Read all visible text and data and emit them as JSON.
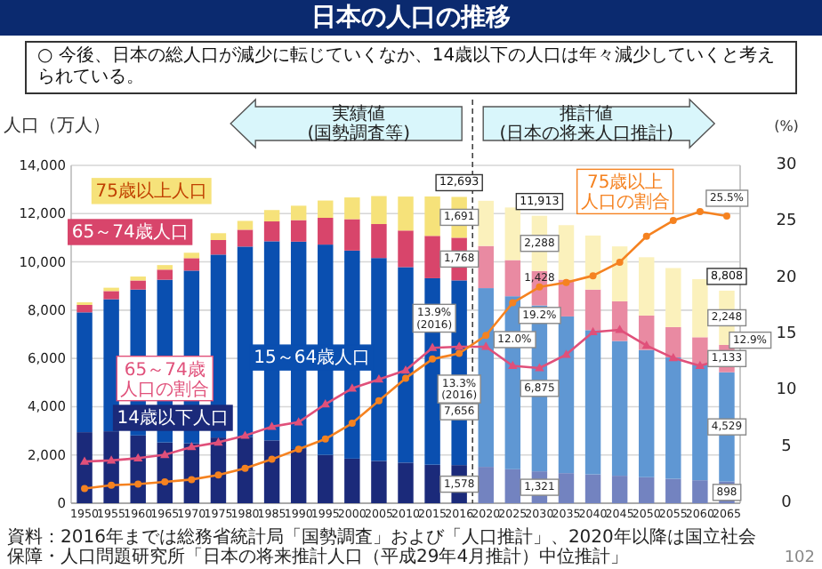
{
  "chart_data": {
    "type": "bar",
    "title": "日本の人口の推移",
    "subtitle": "○ 今後、日本の総人口が減少に転じていくなか、14歳以下の人口は年々減少していくと考えられている。",
    "ylabel": "人口（万人）",
    "y2label": "(%)",
    "categories": [
      "1950",
      "1955",
      "1960",
      "1965",
      "1970",
      "1975",
      "1980",
      "1985",
      "1990",
      "1995",
      "2000",
      "2005",
      "2010",
      "2015",
      "2016",
      "2020",
      "2025",
      "2030",
      "2035",
      "2040",
      "2045",
      "2050",
      "2055",
      "2060",
      "2065"
    ],
    "stacked": true,
    "grid": "y",
    "legend": false,
    "ylim": [
      0,
      14000
    ],
    "yticks": [
      0,
      {
        "value": 2000,
        "label": "2,000"
      },
      {
        "value": 4000,
        "label": "4,000"
      },
      {
        "value": 6000,
        "label": "6,000"
      },
      {
        "value": 8000,
        "label": "8,000"
      },
      {
        "value": 10000,
        "label": "10,000"
      },
      {
        "value": 12000,
        "label": "12,000"
      },
      {
        "value": 14000,
        "label": "14,000"
      }
    ],
    "y2lim": [
      0,
      30
    ],
    "y2ticks": [
      0,
      5,
      10,
      15,
      20,
      25,
      30
    ],
    "series": [
      {
        "name": "14歳以下人口",
        "color": "#1b2a7a",
        "colors": [
          "#1b2a7a",
          "#1b2a7a",
          "#1b2a7a",
          "#1b2a7a",
          "#1b2a7a",
          "#1b2a7a",
          "#1b2a7a",
          "#1b2a7a",
          "#1b2a7a",
          "#1b2a7a",
          "#1b2a7a",
          "#1b2a7a",
          "#1b2a7a",
          "#1b2a7a",
          "#1b2a7a",
          "#7383c0",
          "#7383c0",
          "#7383c0",
          "#7383c0",
          "#7383c0",
          "#7383c0",
          "#7383c0",
          "#7383c0",
          "#7383c0",
          "#7383c0"
        ],
        "values": [
          2943,
          2980,
          2807,
          2517,
          2482,
          2722,
          2751,
          2603,
          2249,
          2001,
          1847,
          1752,
          1680,
          1595,
          1578,
          1507,
          1407,
          1321,
          1246,
          1194,
          1138,
          1077,
          1012,
          951,
          898
        ],
        "value_labels": [
          null,
          null,
          null,
          null,
          null,
          null,
          null,
          null,
          null,
          null,
          null,
          null,
          null,
          null,
          "1,578",
          null,
          null,
          "1,321",
          null,
          null,
          null,
          null,
          null,
          null,
          "898"
        ]
      },
      {
        "name": "15～64歳人口",
        "color": "#0a4fb0",
        "colors": [
          "#0a4fb0",
          "#0a4fb0",
          "#0a4fb0",
          "#0a4fb0",
          "#0a4fb0",
          "#0a4fb0",
          "#0a4fb0",
          "#0a4fb0",
          "#0a4fb0",
          "#0a4fb0",
          "#0a4fb0",
          "#0a4fb0",
          "#0a4fb0",
          "#0a4fb0",
          "#0a4fb0",
          "#5f97d3",
          "#5f97d3",
          "#5f97d3",
          "#5f97d3",
          "#5f97d3",
          "#5f97d3",
          "#5f97d3",
          "#5f97d3",
          "#5f97d3",
          "#5f97d3"
        ],
        "values": [
          4966,
          5473,
          6047,
          6744,
          7157,
          7581,
          7883,
          8251,
          8590,
          8716,
          8622,
          8409,
          8103,
          7728,
          7656,
          7406,
          7170,
          6875,
          6494,
          5978,
          5584,
          5275,
          5028,
          4793,
          4529
        ],
        "value_labels": [
          null,
          null,
          null,
          null,
          null,
          null,
          null,
          null,
          null,
          null,
          null,
          null,
          null,
          null,
          "7,656",
          null,
          null,
          "6,875",
          null,
          null,
          null,
          null,
          null,
          null,
          "4,529"
        ]
      },
      {
        "name": "65～74歳人口",
        "color": "#d8456b",
        "colors": [
          "#d8456b",
          "#d8456b",
          "#d8456b",
          "#d8456b",
          "#d8456b",
          "#d8456b",
          "#d8456b",
          "#d8456b",
          "#d8456b",
          "#d8456b",
          "#d8456b",
          "#d8456b",
          "#d8456b",
          "#d8456b",
          "#d8456b",
          "#e98aa2",
          "#e98aa2",
          "#e98aa2",
          "#e98aa2",
          "#e98aa2",
          "#e98aa2",
          "#e98aa2",
          "#e98aa2",
          "#e98aa2",
          "#e98aa2"
        ],
        "values": [
          309,
          338,
          375,
          418,
          516,
          602,
          699,
          824,
          892,
          1109,
          1301,
          1407,
          1517,
          1755,
          1768,
          1747,
          1497,
          1428,
          1522,
          1681,
          1643,
          1424,
          1258,
          1133,
          1133
        ],
        "value_labels": [
          null,
          null,
          null,
          null,
          null,
          null,
          null,
          null,
          null,
          null,
          null,
          null,
          null,
          null,
          "1,768",
          null,
          null,
          "1,428",
          null,
          null,
          null,
          null,
          null,
          null,
          "1,133"
        ]
      },
      {
        "name": "75歳以上人口",
        "color": "#f6e27a",
        "colors": [
          "#f6e27a",
          "#f6e27a",
          "#f6e27a",
          "#f6e27a",
          "#f6e27a",
          "#f6e27a",
          "#f6e27a",
          "#f6e27a",
          "#f6e27a",
          "#f6e27a",
          "#f6e27a",
          "#f6e27a",
          "#f6e27a",
          "#f6e27a",
          "#f6e27a",
          "#fbf1bc",
          "#fbf1bc",
          "#fbf1bc",
          "#fbf1bc",
          "#fbf1bc",
          "#fbf1bc",
          "#fbf1bc",
          "#fbf1bc",
          "#fbf1bc",
          "#fbf1bc"
        ],
        "values": [
          107,
          139,
          164,
          189,
          224,
          284,
          366,
          471,
          597,
          717,
          901,
          1160,
          1407,
          1632,
          1691,
          1872,
          2180,
          2288,
          2260,
          2239,
          2277,
          2417,
          2446,
          2408,
          2248
        ],
        "value_labels": [
          null,
          null,
          null,
          null,
          null,
          null,
          null,
          null,
          null,
          null,
          null,
          null,
          null,
          null,
          "1,691",
          null,
          null,
          "2,288",
          null,
          null,
          null,
          null,
          null,
          null,
          "2,248"
        ]
      },
      {
        "name": "65～74歳人口の割合",
        "type": "line",
        "axis": "y2",
        "marker": "triangle",
        "color": "#e0507a",
        "values": [
          3.7,
          3.8,
          4.0,
          4.3,
          5.0,
          5.4,
          6.0,
          6.8,
          7.2,
          8.8,
          10.2,
          11.0,
          11.8,
          13.8,
          13.9,
          13.9,
          12.2,
          12.0,
          13.2,
          15.2,
          15.4,
          14.0,
          12.9,
          12.2,
          12.9
        ],
        "value_labels": [
          null,
          null,
          null,
          null,
          null,
          null,
          null,
          null,
          null,
          null,
          null,
          null,
          null,
          null,
          "13.9%\n(2016)",
          null,
          null,
          "12.0%",
          null,
          null,
          null,
          null,
          null,
          null,
          "12.9%"
        ]
      },
      {
        "name": "75歳以上人口の割合",
        "type": "line",
        "axis": "y2",
        "marker": "circle",
        "color": "#f58220",
        "values": [
          1.3,
          1.6,
          1.7,
          1.9,
          2.1,
          2.5,
          3.1,
          3.9,
          4.8,
          5.7,
          7.1,
          9.1,
          11.1,
          12.8,
          13.3,
          14.9,
          17.8,
          19.2,
          19.6,
          20.2,
          21.4,
          23.7,
          25.1,
          25.9,
          25.5
        ],
        "value_labels": [
          null,
          null,
          null,
          null,
          null,
          null,
          null,
          null,
          null,
          null,
          null,
          null,
          null,
          null,
          "13.3%\n(2016)",
          null,
          null,
          "19.2%",
          null,
          null,
          null,
          null,
          null,
          null,
          "25.5%"
        ]
      }
    ],
    "totals": [
      null,
      null,
      null,
      null,
      null,
      null,
      null,
      null,
      null,
      null,
      null,
      null,
      null,
      null,
      "12,693",
      null,
      null,
      "11,913",
      null,
      null,
      null,
      null,
      null,
      null,
      "8,808"
    ],
    "ref_lines": [
      {
        "axis": "x",
        "value": "2016",
        "line_style": "dashed"
      }
    ],
    "annotations": [
      "実績値\n(国勢調査等)",
      "推計値\n(日本の将来人口推計)",
      "資料：2016年までは総務省統計局「国勢調査」および「人口推計」、2020年以降は国立社会保障・人口問題研究所「日本の将来推計人口（平成29年4月推計）中位推計」",
      "102"
    ]
  }
}
